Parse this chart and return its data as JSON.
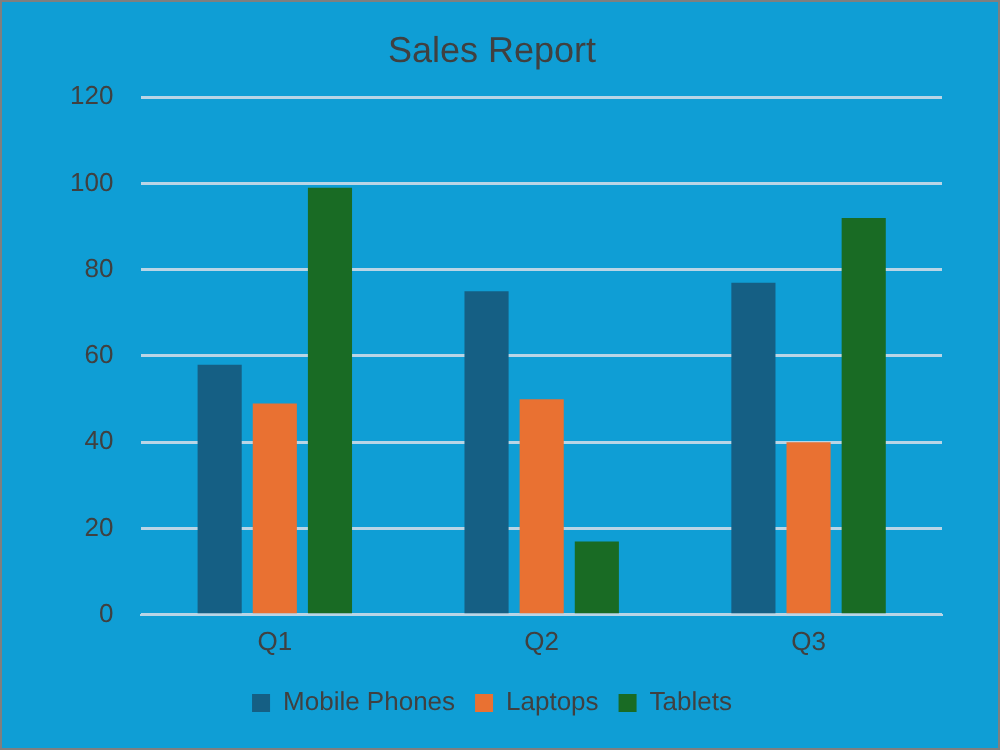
{
  "chart_data": {
    "type": "bar",
    "title": "Sales Report",
    "categories": [
      "Q1",
      "Q2",
      "Q3"
    ],
    "series": [
      {
        "name": "Mobile Phones",
        "color": "#155f84",
        "values": [
          58,
          75,
          77
        ]
      },
      {
        "name": "Laptops",
        "color": "#e97132",
        "values": [
          49,
          50,
          40
        ]
      },
      {
        "name": "Tablets",
        "color": "#196b24",
        "values": [
          99,
          17,
          92
        ]
      }
    ],
    "ylim": [
      0,
      120
    ],
    "yticks": [
      0,
      20,
      40,
      60,
      80,
      100,
      120
    ],
    "grid": "y",
    "legend": "bottom"
  }
}
